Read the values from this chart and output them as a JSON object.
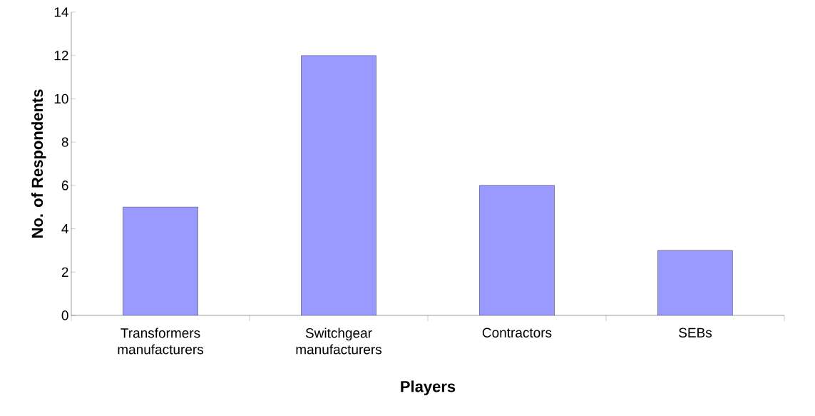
{
  "chart_data": {
    "type": "bar",
    "xlabel": "Players",
    "ylabel": "No. of Respondents",
    "categories": [
      "Transformers manufacturers",
      "Switchgear manufacturers",
      "Contractors",
      "SEBs"
    ],
    "values": [
      5,
      12,
      6,
      3
    ],
    "color": "#9999ff",
    "ylim": [
      0,
      14
    ],
    "yticks": [
      0,
      2,
      4,
      6,
      8,
      10,
      12,
      14
    ],
    "grid": false
  }
}
